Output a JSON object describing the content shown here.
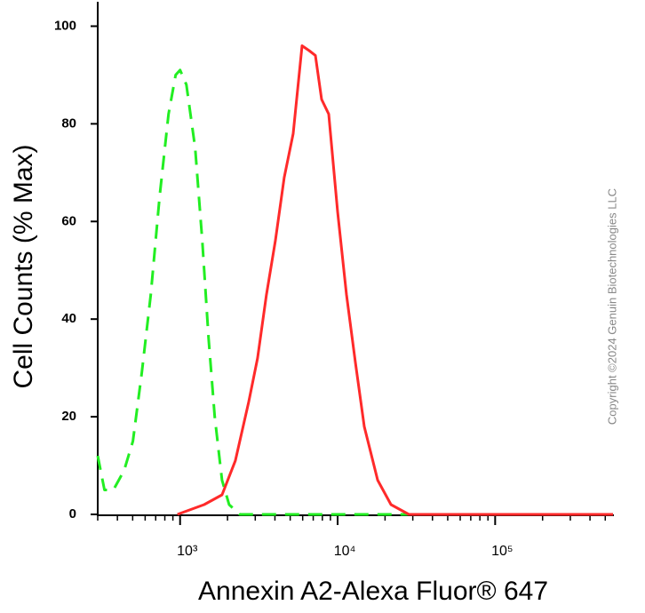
{
  "chart_data": {
    "type": "line",
    "x_label": "Annexin A2-Alexa Fluor® 647",
    "y_label": "Cell Counts (% Max)",
    "annotation": "Copyright ©2024 Genuin Biotechnologies LLC",
    "xlog": true,
    "xlim": [
      300,
      560000
    ],
    "ylim": [
      0,
      105
    ],
    "xticks": [
      {
        "value": 1000,
        "label": "10³"
      },
      {
        "value": 10000,
        "label": "10⁴"
      },
      {
        "value": 100000,
        "label": "10⁵"
      }
    ],
    "xminorticks": [
      300,
      400,
      500,
      600,
      700,
      800,
      900,
      2000,
      3000,
      4000,
      5000,
      6000,
      7000,
      8000,
      9000,
      20000,
      30000,
      40000,
      50000,
      60000,
      70000,
      80000,
      90000,
      200000,
      300000,
      400000,
      500000
    ],
    "yticks": [
      0,
      20,
      40,
      60,
      80,
      100
    ],
    "series": [
      {
        "color": "#22ee22",
        "dashed": true,
        "x": [
          300,
          331,
          377,
          441,
          502,
          571,
          651,
          741,
          845,
          937,
          1000,
          1096,
          1247,
          1384,
          1516,
          1660,
          1845,
          2047,
          2393,
          12970,
          560000
        ],
        "values": [
          12,
          5,
          5,
          9,
          15,
          29,
          45,
          65,
          82,
          90,
          91,
          88,
          75,
          56,
          36,
          20,
          7,
          2,
          0,
          0,
          0
        ]
      },
      {
        "color": "#ff2a2a",
        "dashed": false,
        "x": [
          962,
          1421,
          1845,
          2241,
          2723,
          3102,
          3532,
          4024,
          4582,
          5220,
          5944,
          6597,
          7223,
          7913,
          8783,
          10000,
          11386,
          12970,
          14760,
          17950,
          21820,
          28310,
          560000
        ],
        "values": [
          0,
          2,
          4,
          11,
          23,
          32,
          45,
          56,
          69,
          78,
          96,
          95,
          94,
          85,
          82,
          62,
          45,
          31,
          18,
          7,
          2,
          0,
          0
        ]
      }
    ]
  }
}
